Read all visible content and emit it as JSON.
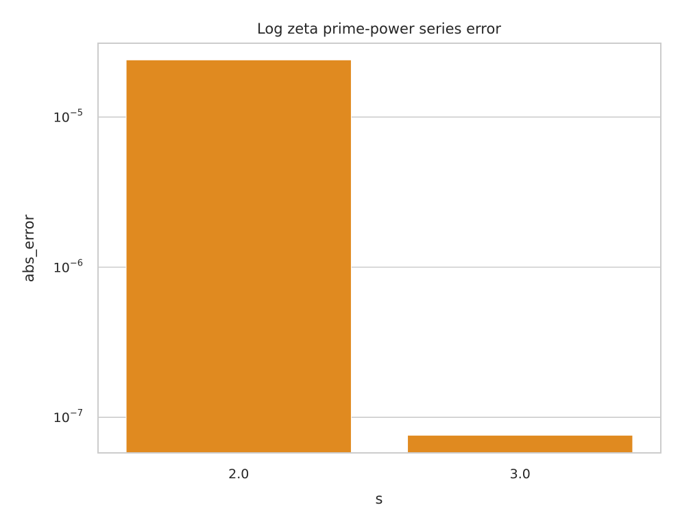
{
  "chart_data": {
    "type": "bar",
    "title": "Log zeta prime-power series error",
    "xlabel": "s",
    "ylabel": "abs_error",
    "categories": [
      "2.0",
      "3.0"
    ],
    "values": [
      2.4e-05,
      7.6e-08
    ],
    "yscale": "log",
    "ylim": [
      5.8e-08,
      3.1e-05
    ],
    "y_ticks": [
      {
        "value": 1e-07,
        "mantissa": "10",
        "exponent": "−7"
      },
      {
        "value": 1e-06,
        "mantissa": "10",
        "exponent": "−6"
      },
      {
        "value": 1e-05,
        "mantissa": "10",
        "exponent": "−5"
      }
    ],
    "grid": "horizontal",
    "bar_color": "#e08a20"
  }
}
